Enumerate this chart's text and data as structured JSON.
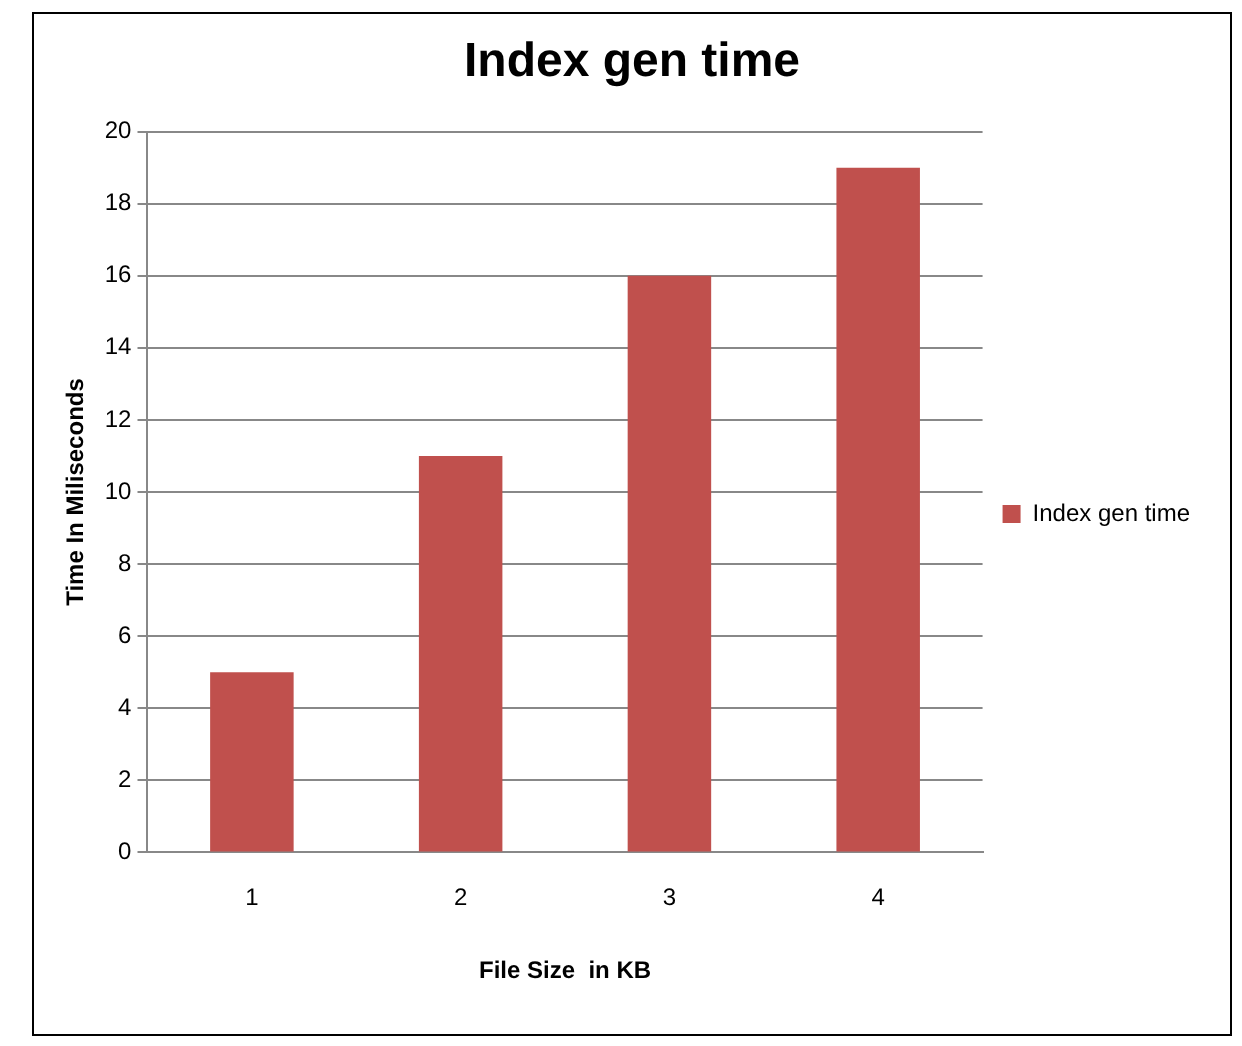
{
  "chart_data": {
    "type": "bar",
    "title": "Index gen time",
    "xlabel": "File Size  in KB",
    "ylabel": "Time In Miliseconds",
    "categories": [
      "1",
      "2",
      "3",
      "4"
    ],
    "series": [
      {
        "name": "Index gen time",
        "color": "#c0504d",
        "values": [
          5,
          11,
          16,
          19
        ]
      }
    ],
    "ylim": [
      0,
      20
    ],
    "yticks": [
      0,
      2,
      4,
      6,
      8,
      10,
      12,
      14,
      16,
      18,
      20
    ],
    "grid": "y",
    "legend": "right"
  }
}
